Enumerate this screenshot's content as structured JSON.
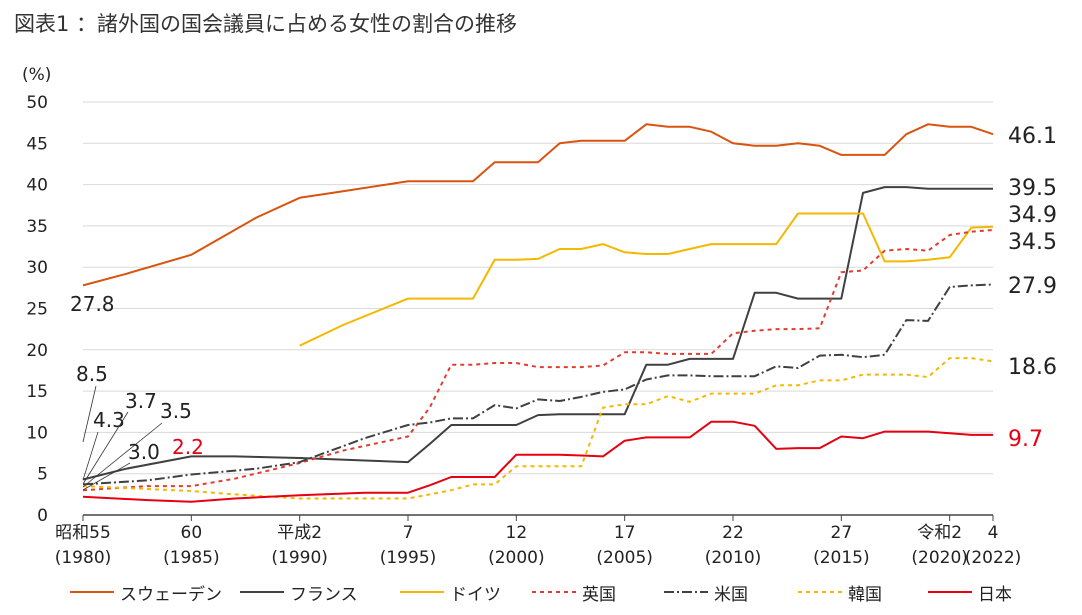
{
  "title": "図表1 ：諸外国の国会議員に占める女性の割合の推移",
  "chart_data": {
    "type": "line",
    "unit_label": "(%)",
    "ylim": [
      0,
      50
    ],
    "yticks": [
      0,
      5,
      10,
      15,
      20,
      25,
      30,
      35,
      40,
      45,
      50
    ],
    "x_range": [
      1980,
      2022
    ],
    "xticks": [
      {
        "x": 1980,
        "line1": "昭和55",
        "line2": "(1980)"
      },
      {
        "x": 1985,
        "line1": "60",
        "line2": "(1985)"
      },
      {
        "x": 1990,
        "line1": "平成2",
        "line2": "(1990)"
      },
      {
        "x": 1995,
        "line1": "7",
        "line2": "(1995)"
      },
      {
        "x": 2000,
        "line1": "12",
        "line2": "(2000)"
      },
      {
        "x": 2005,
        "line1": "17",
        "line2": "(2005)"
      },
      {
        "x": 2010,
        "line1": "22",
        "line2": "(2010)"
      },
      {
        "x": 2015,
        "line1": "27",
        "line2": "(2015)"
      },
      {
        "x": 2020,
        "line1": "令和2",
        "line2": "(2020)"
      },
      {
        "x": 2022,
        "line1": "4",
        "line2": "(2022)"
      }
    ],
    "grid": true,
    "legend_position": "bottom",
    "series": [
      {
        "name": "スウェーデン",
        "color": "#D9540F",
        "dash": "solid",
        "x": [
          1980,
          1982,
          1985,
          1988,
          1990,
          1992,
          1994,
          1995,
          1996,
          1997,
          1998,
          1999,
          2000,
          2001,
          2002,
          2003,
          2004,
          2005,
          2006,
          2007,
          2008,
          2009,
          2010,
          2011,
          2012,
          2013,
          2014,
          2015,
          2016,
          2017,
          2018,
          2019,
          2020,
          2021,
          2022
        ],
        "y": [
          27.8,
          29.2,
          31.5,
          36.0,
          38.4,
          39.2,
          40.0,
          40.4,
          40.4,
          40.4,
          40.4,
          42.7,
          42.7,
          42.7,
          45.0,
          45.3,
          45.3,
          45.3,
          47.3,
          47.0,
          47.0,
          46.4,
          45.0,
          44.7,
          44.7,
          45.0,
          44.7,
          43.6,
          43.6,
          43.6,
          46.1,
          47.3,
          47.0,
          47.0,
          46.1
        ]
      },
      {
        "name": "フランス",
        "color": "#404040",
        "dash": "solid",
        "x": [
          1980,
          1982,
          1985,
          1987,
          1990,
          1993,
          1995,
          1996,
          1997,
          1998,
          1999,
          2000,
          2001,
          2002,
          2003,
          2004,
          2005,
          2006,
          2007,
          2008,
          2009,
          2010,
          2011,
          2012,
          2013,
          2014,
          2015,
          2016,
          2017,
          2018,
          2019,
          2020,
          2021,
          2022
        ],
        "y": [
          4.3,
          5.6,
          7.1,
          7.1,
          6.9,
          6.6,
          6.4,
          8.6,
          10.9,
          10.9,
          10.9,
          10.9,
          12.1,
          12.2,
          12.2,
          12.2,
          12.2,
          18.2,
          18.2,
          18.9,
          18.9,
          18.9,
          26.9,
          26.9,
          26.2,
          26.2,
          26.2,
          39.0,
          39.7,
          39.7,
          39.5,
          39.5,
          39.5,
          39.5
        ]
      },
      {
        "name": "ドイツ",
        "color": "#F5B800",
        "dash": "solid",
        "x": [
          1990,
          1992,
          1995,
          1996,
          1997,
          1998,
          1999,
          2000,
          2001,
          2002,
          2003,
          2004,
          2005,
          2006,
          2007,
          2008,
          2009,
          2010,
          2011,
          2012,
          2013,
          2014,
          2015,
          2016,
          2017,
          2018,
          2019,
          2020,
          2021,
          2022
        ],
        "y": [
          20.5,
          23.0,
          26.2,
          26.2,
          26.2,
          26.2,
          30.9,
          30.9,
          31.0,
          32.2,
          32.2,
          32.8,
          31.8,
          31.6,
          31.6,
          32.2,
          32.8,
          32.8,
          32.8,
          32.8,
          36.5,
          36.5,
          36.5,
          36.5,
          30.7,
          30.7,
          30.9,
          31.2,
          34.8,
          34.9
        ]
      },
      {
        "name": "英国",
        "color": "#E03C31",
        "dash": "4,4",
        "x": [
          1980,
          1983,
          1985,
          1987,
          1990,
          1992,
          1995,
          1996,
          1997,
          1998,
          1999,
          2000,
          2001,
          2002,
          2003,
          2004,
          2005,
          2006,
          2007,
          2008,
          2009,
          2010,
          2011,
          2012,
          2013,
          2014,
          2015,
          2016,
          2017,
          2018,
          2019,
          2020,
          2021,
          2022
        ],
        "y": [
          3.0,
          3.5,
          3.5,
          4.4,
          6.3,
          7.8,
          9.5,
          13.0,
          18.2,
          18.2,
          18.4,
          18.4,
          17.9,
          17.9,
          17.9,
          18.1,
          19.7,
          19.7,
          19.5,
          19.5,
          19.5,
          22.0,
          22.3,
          22.5,
          22.5,
          22.6,
          29.4,
          29.6,
          32.0,
          32.2,
          32.0,
          33.9,
          34.3,
          34.5
        ]
      },
      {
        "name": "米国",
        "color": "#404040",
        "dash": "10,3,2,3",
        "x": [
          1980,
          1983,
          1985,
          1988,
          1990,
          1993,
          1995,
          1996,
          1997,
          1998,
          1999,
          2000,
          2001,
          2002,
          2003,
          2004,
          2005,
          2006,
          2007,
          2008,
          2009,
          2010,
          2011,
          2012,
          2013,
          2014,
          2015,
          2016,
          2017,
          2018,
          2019,
          2020,
          2021,
          2022
        ],
        "y": [
          3.7,
          4.2,
          4.9,
          5.6,
          6.4,
          9.3,
          10.9,
          11.2,
          11.7,
          11.7,
          13.3,
          12.9,
          14.0,
          13.8,
          14.3,
          14.9,
          15.2,
          16.4,
          16.9,
          16.9,
          16.8,
          16.8,
          16.8,
          18.0,
          17.8,
          19.3,
          19.4,
          19.1,
          19.4,
          23.6,
          23.5,
          27.6,
          27.8,
          27.9
        ]
      },
      {
        "name": "韓国",
        "color": "#F5B800",
        "dash": "4,4",
        "x": [
          1980,
          1985,
          1987,
          1990,
          1992,
          1995,
          1996,
          1997,
          1998,
          1999,
          2000,
          2001,
          2002,
          2003,
          2004,
          2005,
          2006,
          2007,
          2008,
          2009,
          2010,
          2011,
          2012,
          2013,
          2014,
          2015,
          2016,
          2017,
          2018,
          2019,
          2020,
          2021,
          2022
        ],
        "y": [
          3.5,
          2.9,
          2.5,
          2.0,
          2.0,
          2.0,
          2.5,
          3.0,
          3.7,
          3.7,
          5.9,
          5.9,
          5.9,
          5.9,
          13.0,
          13.4,
          13.4,
          14.4,
          13.7,
          14.7,
          14.7,
          14.7,
          15.7,
          15.7,
          16.3,
          16.3,
          17.0,
          17.0,
          17.0,
          16.7,
          19.0,
          19.0,
          18.6
        ]
      },
      {
        "name": "日本",
        "color": "#E60012",
        "dash": "solid",
        "x": [
          1980,
          1983,
          1985,
          1987,
          1990,
          1993,
          1995,
          1996,
          1997,
          1998,
          1999,
          2000,
          2001,
          2002,
          2003,
          2004,
          2005,
          2006,
          2007,
          2008,
          2009,
          2010,
          2011,
          2012,
          2013,
          2014,
          2015,
          2016,
          2017,
          2018,
          2019,
          2020,
          2021,
          2022
        ],
        "y": [
          2.2,
          1.8,
          1.6,
          2.0,
          2.4,
          2.7,
          2.7,
          3.6,
          4.6,
          4.6,
          4.6,
          7.3,
          7.3,
          7.3,
          7.2,
          7.1,
          9.0,
          9.4,
          9.4,
          9.4,
          11.3,
          11.3,
          10.8,
          8.0,
          8.1,
          8.1,
          9.5,
          9.3,
          10.1,
          10.1,
          10.1,
          9.9,
          9.7,
          9.7
        ]
      }
    ],
    "start_labels": [
      {
        "text": "27.8",
        "color": "#222222"
      },
      {
        "text": "8.5",
        "color": "#222222"
      },
      {
        "text": "4.3",
        "color": "#222222"
      },
      {
        "text": "3.7",
        "color": "#222222"
      },
      {
        "text": "3.5",
        "color": "#222222"
      },
      {
        "text": "3.0",
        "color": "#222222"
      },
      {
        "text": "2.2",
        "color": "#E60012"
      }
    ],
    "end_labels": [
      {
        "text": "46.1",
        "color": "#222222"
      },
      {
        "text": "39.5",
        "color": "#222222"
      },
      {
        "text": "34.9",
        "color": "#222222"
      },
      {
        "text": "34.5",
        "color": "#222222"
      },
      {
        "text": "27.9",
        "color": "#222222"
      },
      {
        "text": "18.6",
        "color": "#222222"
      },
      {
        "text": "9.7",
        "color": "#E60012"
      }
    ]
  }
}
